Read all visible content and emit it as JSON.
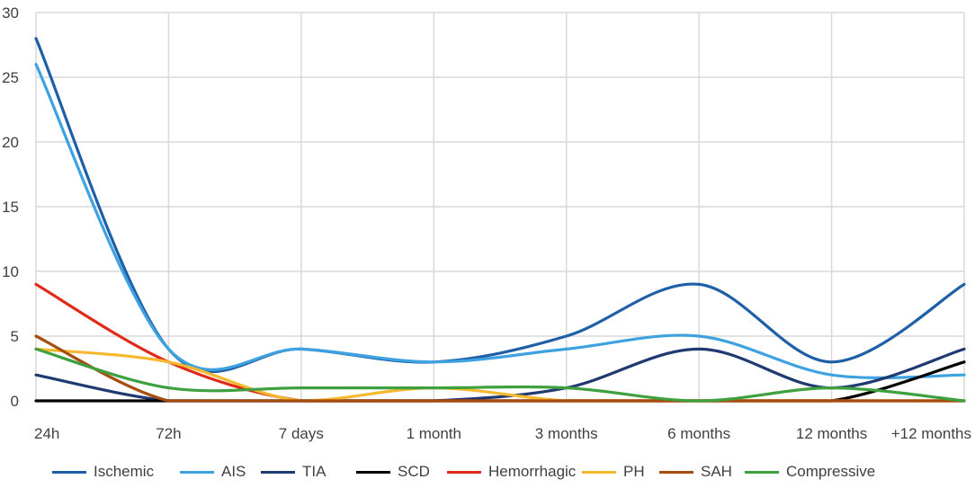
{
  "chart_data": {
    "type": "line",
    "title": "",
    "xlabel": "",
    "ylabel": "",
    "ylim": [
      0,
      30
    ],
    "yticks": [
      "0",
      "5",
      "10",
      "15",
      "20",
      "25",
      "30"
    ],
    "grid": true,
    "smooth": true,
    "legend_position": "bottom",
    "categories": [
      "24h",
      "72h",
      "7 days",
      "1 month",
      "3 months",
      "6 months",
      "12 months",
      "+12 months"
    ],
    "series": [
      {
        "name": "Ischemic",
        "color": "#1f5fa8",
        "values": [
          28,
          4,
          4,
          3,
          5,
          9,
          3,
          9
        ]
      },
      {
        "name": "AIS",
        "color": "#3fa2e0",
        "values": [
          26,
          4,
          4,
          3,
          4,
          5,
          2,
          2
        ]
      },
      {
        "name": "TIA",
        "color": "#1f3a70",
        "values": [
          2,
          0,
          0,
          0,
          1,
          4,
          1,
          4
        ]
      },
      {
        "name": "SCD",
        "color": "#000000",
        "values": [
          0,
          0,
          0,
          0,
          0,
          0,
          0,
          3
        ]
      },
      {
        "name": "Hemorrhagic",
        "color": "#e02a1a",
        "values": [
          9,
          3,
          0,
          0,
          0,
          0,
          0,
          0
        ]
      },
      {
        "name": "PH",
        "color": "#f5b82e",
        "values": [
          4,
          3,
          0,
          1,
          0,
          0,
          0,
          0
        ]
      },
      {
        "name": "SAH",
        "color": "#a64d12",
        "values": [
          5,
          0,
          0,
          0,
          0,
          0,
          0,
          0
        ]
      },
      {
        "name": "Compressive",
        "color": "#3ea03e",
        "values": [
          4,
          1,
          1,
          1,
          1,
          0,
          1,
          0
        ]
      }
    ]
  }
}
